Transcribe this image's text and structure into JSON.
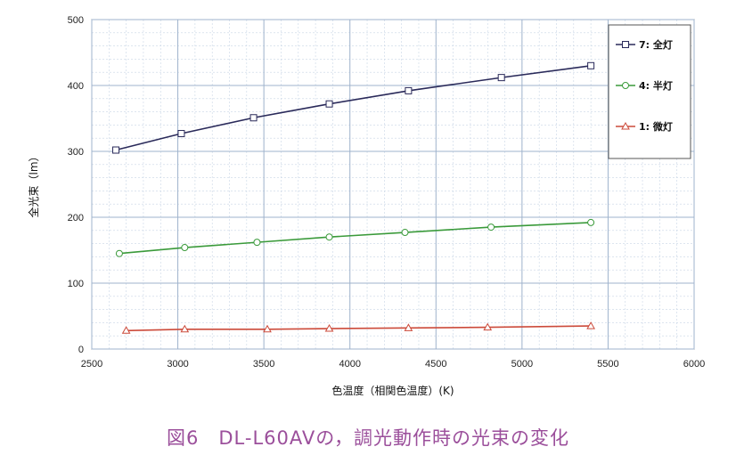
{
  "caption": "図6　DL-L60AVの，調光動作時の光束の変化",
  "chart_data": {
    "type": "line",
    "xlabel": "色温度（相関色温度）(K)",
    "ylabel": "全光束（lm）",
    "xlim": [
      2500,
      6000
    ],
    "ylim": [
      0,
      500
    ],
    "xticks": [
      2500,
      3000,
      3500,
      4000,
      4500,
      5000,
      5500,
      6000
    ],
    "yticks": [
      0,
      100,
      200,
      300,
      400,
      500
    ],
    "grid": true,
    "legend_position": "top-right",
    "series": [
      {
        "name": "7: 全灯",
        "color": "#2a2a5a",
        "marker": "square",
        "x": [
          2640,
          3020,
          3440,
          3880,
          4340,
          4880,
          5400
        ],
        "y": [
          302,
          327,
          351,
          372,
          392,
          412,
          430
        ]
      },
      {
        "name": "4: 半灯",
        "color": "#3a9a3a",
        "marker": "circle",
        "x": [
          2660,
          3040,
          3460,
          3880,
          4320,
          4820,
          5400
        ],
        "y": [
          145,
          154,
          162,
          170,
          177,
          185,
          192
        ]
      },
      {
        "name": "1: 微灯",
        "color": "#cc4a3a",
        "marker": "triangle",
        "x": [
          2700,
          3040,
          3520,
          3880,
          4340,
          4800,
          5400
        ],
        "y": [
          28,
          30,
          30,
          31,
          32,
          33,
          35
        ]
      }
    ]
  }
}
